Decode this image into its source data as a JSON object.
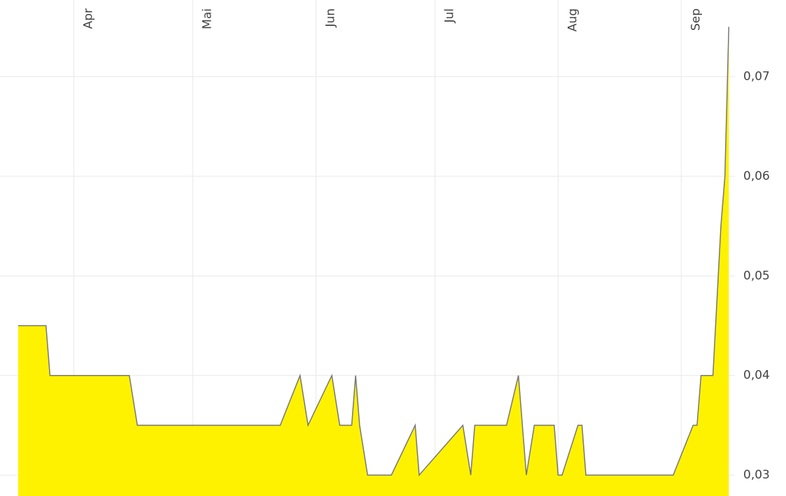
{
  "chart_data": {
    "type": "area",
    "color": "#fff200",
    "line_color": "#777777",
    "grid": true,
    "x": [
      77,
      84,
      85,
      105,
      107,
      143,
      148,
      150,
      156,
      158,
      161,
      162,
      163,
      165,
      171,
      177,
      178,
      189,
      191,
      192,
      200,
      203,
      205,
      207,
      212,
      213,
      214,
      218,
      219,
      220,
      242,
      247,
      248,
      249,
      252,
      254,
      255,
      256
    ],
    "values": [
      0.045,
      0.045,
      0.04,
      0.04,
      0.035,
      0.035,
      0.04,
      0.035,
      0.04,
      0.035,
      0.035,
      0.04,
      0.035,
      0.03,
      0.03,
      0.035,
      0.03,
      0.035,
      0.03,
      0.035,
      0.035,
      0.04,
      0.03,
      0.035,
      0.035,
      0.03,
      0.03,
      0.035,
      0.035,
      0.03,
      0.03,
      0.035,
      0.035,
      0.04,
      0.04,
      0.055,
      0.06,
      0.075
    ],
    "xlim": [
      77,
      257
    ],
    "xticks": [
      {
        "value": 91,
        "label": "Apr"
      },
      {
        "value": 121,
        "label": "Mai"
      },
      {
        "value": 152,
        "label": "Jun"
      },
      {
        "value": 182,
        "label": "Jul"
      },
      {
        "value": 213,
        "label": "Aug"
      },
      {
        "value": 244,
        "label": "Sep"
      }
    ],
    "ylim": [
      0.0279,
      0.0777
    ],
    "yticks": [
      {
        "value": 0.03,
        "label": "0,03"
      },
      {
        "value": 0.04,
        "label": "0,04"
      },
      {
        "value": 0.05,
        "label": "0,05"
      },
      {
        "value": 0.06,
        "label": "0,06"
      },
      {
        "value": 0.07,
        "label": "0,07"
      }
    ]
  }
}
